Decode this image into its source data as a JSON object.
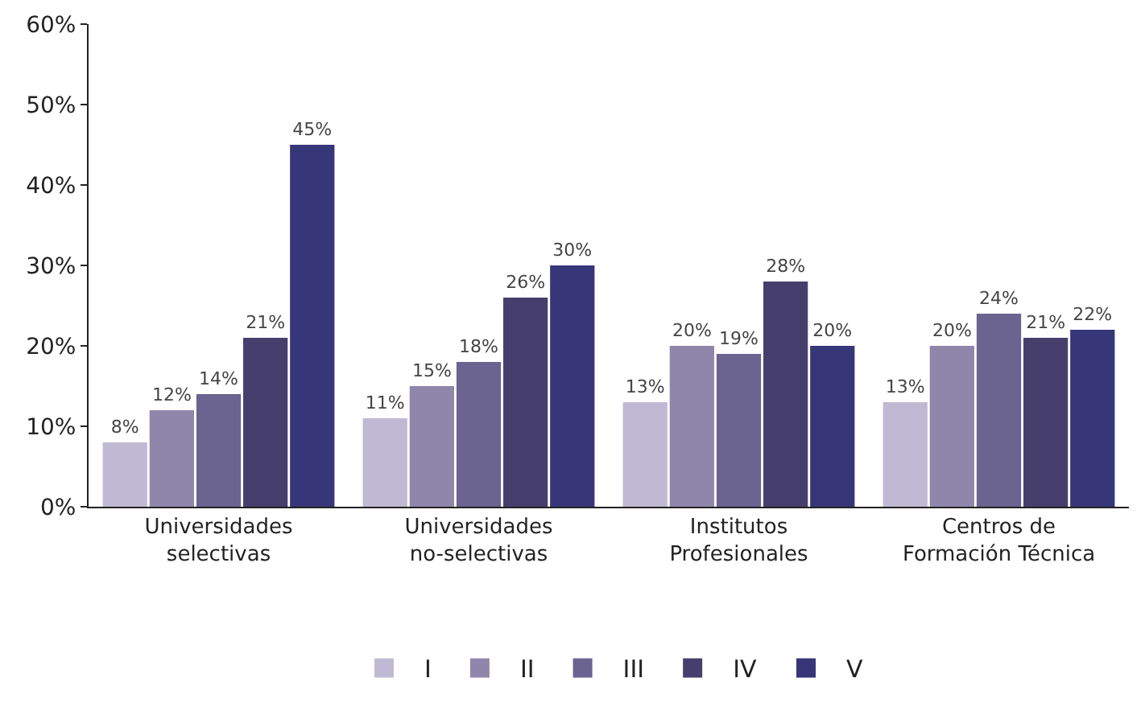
{
  "chart_data": {
    "type": "bar",
    "categories": [
      "Universidades\nselectivas",
      "Universidades\nno-selectivas",
      "Institutos\nProfesionales",
      "Centros de\nFormación Técnica"
    ],
    "series": [
      {
        "name": "I",
        "color": "#c0b9d3",
        "values": [
          8,
          11,
          13,
          13
        ],
        "value_labels": [
          "8%",
          "11%",
          "13%",
          "13%"
        ]
      },
      {
        "name": "II",
        "color": "#8f87ab",
        "values": [
          12,
          15,
          20,
          20
        ],
        "value_labels": [
          "12%",
          "15%",
          "20%",
          "20%"
        ]
      },
      {
        "name": "III",
        "color": "#6b6390",
        "values": [
          14,
          18,
          19,
          24
        ],
        "value_labels": [
          "14%",
          "18%",
          "19%",
          "24%"
        ]
      },
      {
        "name": "IV",
        "color": "#463f6e",
        "values": [
          21,
          26,
          28,
          21
        ],
        "value_labels": [
          "21%",
          "26%",
          "28%",
          "21%"
        ]
      },
      {
        "name": "V",
        "color": "#363679",
        "values": [
          45,
          30,
          20,
          22
        ],
        "value_labels": [
          "45%",
          "30%",
          "20%",
          "22%"
        ]
      }
    ],
    "ylim": [
      0,
      60
    ],
    "yticks": [
      {
        "value": 0,
        "label": "0%"
      },
      {
        "value": 10,
        "label": "10%"
      },
      {
        "value": 20,
        "label": "20%"
      },
      {
        "value": 30,
        "label": "30%"
      },
      {
        "value": 40,
        "label": "40%"
      },
      {
        "value": 50,
        "label": "50%"
      },
      {
        "value": 60,
        "label": "60%"
      }
    ],
    "grid": false,
    "legend": "bottom"
  }
}
